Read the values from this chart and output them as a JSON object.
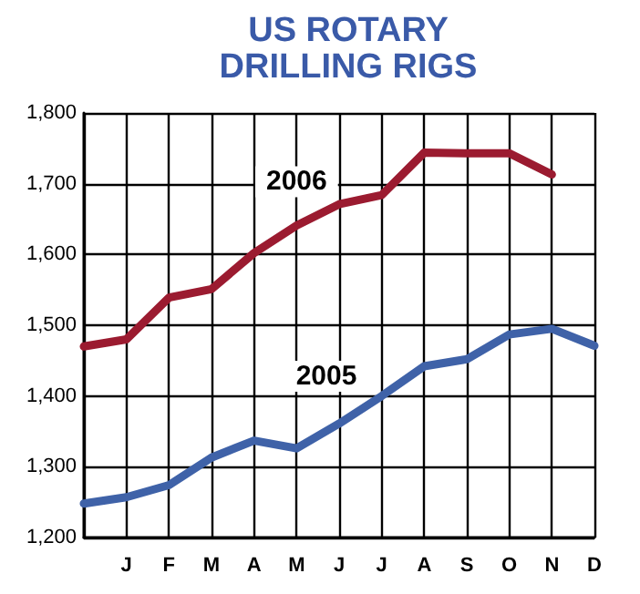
{
  "chart_data": {
    "type": "line",
    "title": "US ROTARY\nDRILLING RIGS",
    "categories": [
      null,
      "J",
      "F",
      "M",
      "A",
      "M",
      "J",
      "J",
      "A",
      "S",
      "O",
      "N",
      "D"
    ],
    "series": [
      {
        "name": "2006",
        "color": "#9b1b30",
        "values": [
          1470,
          1480,
          1539,
          1551,
          1602,
          1641,
          1671,
          1684,
          1744,
          1743,
          1743,
          1713,
          null
        ]
      },
      {
        "name": "2005",
        "color": "#3f62a8",
        "values": [
          1248,
          1257,
          1274,
          1313,
          1337,
          1326,
          1361,
          1400,
          1442,
          1452,
          1487,
          1495,
          1471
        ]
      }
    ],
    "ylim": [
      1200,
      1800
    ],
    "yticks": [
      {
        "value": 1200,
        "label": "1,200"
      },
      {
        "value": 1300,
        "label": "1,300"
      },
      {
        "value": 1400,
        "label": "1,400"
      },
      {
        "value": 1500,
        "label": "1,500"
      },
      {
        "value": 1600,
        "label": "1,600"
      },
      {
        "value": 1700,
        "label": "1,700"
      },
      {
        "value": 1800,
        "label": "1,800"
      }
    ],
    "grid": true,
    "legend": false,
    "marker": "none",
    "line_style": "solid"
  }
}
